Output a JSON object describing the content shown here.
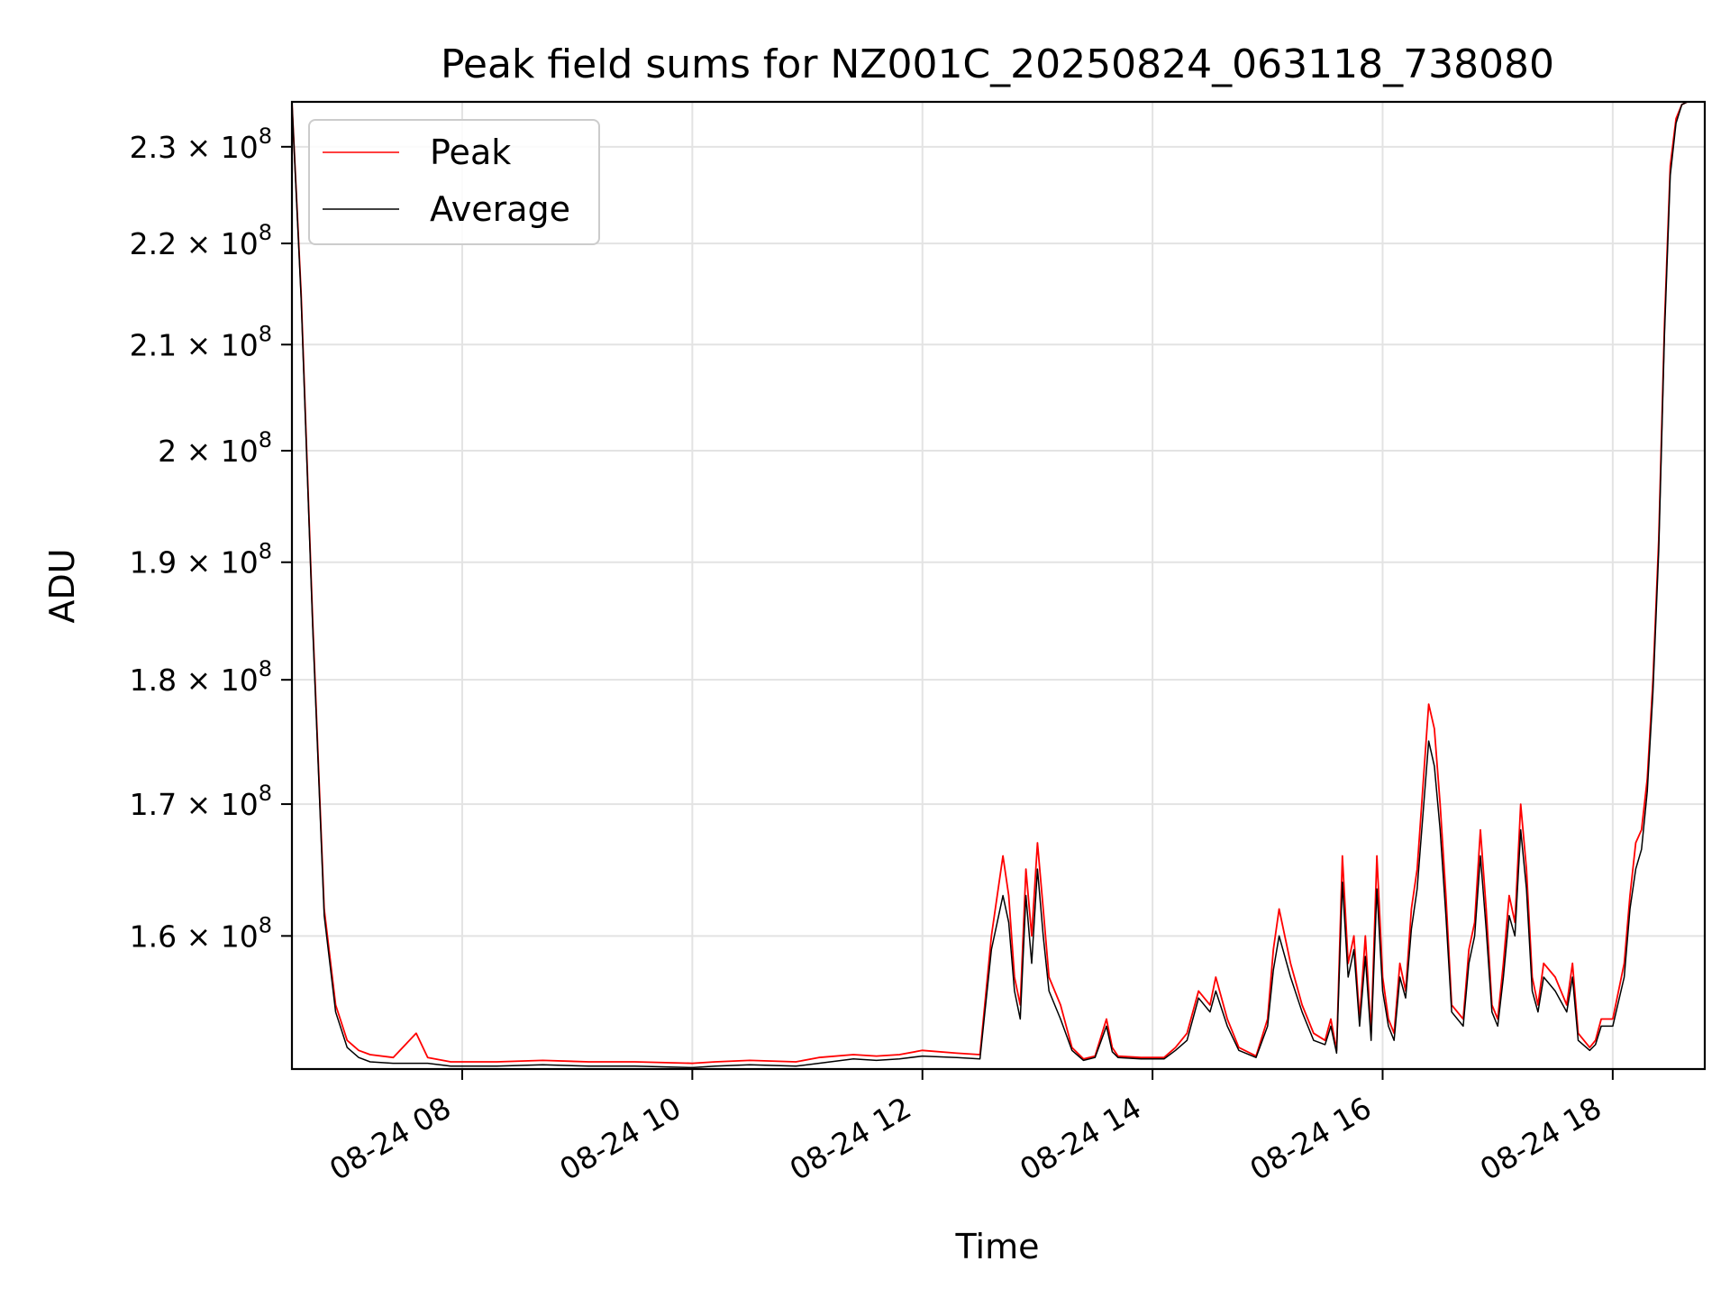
{
  "chart_data": {
    "type": "line",
    "title": "Peak field sums for NZ001C_20250824_063118_738080",
    "xlabel": "Time",
    "ylabel": "ADU",
    "x_tick_labels": [
      "08-24 08",
      "08-24 10",
      "08-24 12",
      "08-24 14",
      "08-24 16",
      "08-24 18"
    ],
    "x_tick_values": [
      8,
      10,
      12,
      14,
      16,
      18
    ],
    "xlim": [
      6.52,
      18.8
    ],
    "y_scale": "log",
    "ylim": [
      150500000,
      234800000
    ],
    "y_tick_values": [
      160000000,
      170000000,
      180000000,
      190000000,
      200000000,
      210000000,
      220000000,
      230000000
    ],
    "y_tick_mantissas": [
      "1.6",
      "1.7",
      "1.8",
      "1.9",
      "2",
      "2.1",
      "2.2",
      "2.3"
    ],
    "y_tick_times": "×",
    "y_tick_base": "10",
    "y_tick_exponent": "8",
    "grid": true,
    "legend_position": "upper-left",
    "series": [
      {
        "name": "Peak",
        "color": "#ff0000",
        "x": [
          6.52,
          6.6,
          6.7,
          6.8,
          6.9,
          7.0,
          7.1,
          7.2,
          7.4,
          7.6,
          7.7,
          7.9,
          8.3,
          8.7,
          9.1,
          9.5,
          10.0,
          10.2,
          10.5,
          10.9,
          11.1,
          11.4,
          11.6,
          11.8,
          12.0,
          12.3,
          12.5,
          12.6,
          12.7,
          12.75,
          12.8,
          12.85,
          12.9,
          12.95,
          13.0,
          13.05,
          13.1,
          13.2,
          13.3,
          13.4,
          13.5,
          13.6,
          13.65,
          13.7,
          13.9,
          14.1,
          14.2,
          14.3,
          14.4,
          14.5,
          14.55,
          14.65,
          14.75,
          14.9,
          15.0,
          15.05,
          15.1,
          15.2,
          15.3,
          15.4,
          15.5,
          15.55,
          15.6,
          15.65,
          15.7,
          15.75,
          15.8,
          15.85,
          15.9,
          15.95,
          16.0,
          16.05,
          16.1,
          16.15,
          16.2,
          16.25,
          16.3,
          16.4,
          16.45,
          16.5,
          16.55,
          16.6,
          16.7,
          16.75,
          16.8,
          16.85,
          16.9,
          16.95,
          17.0,
          17.05,
          17.1,
          17.15,
          17.2,
          17.25,
          17.3,
          17.35,
          17.4,
          17.5,
          17.6,
          17.65,
          17.7,
          17.8,
          17.85,
          17.9,
          18.0,
          18.1,
          18.15,
          18.2,
          18.25,
          18.3,
          18.35,
          18.4,
          18.45,
          18.5,
          18.55,
          18.6,
          18.65,
          18.7,
          18.8
        ],
        "y": [
          234800000,
          215000000,
          185000000,
          162000000,
          155000000,
          152500000,
          151800000,
          151500000,
          151300000,
          153000000,
          151300000,
          151000000,
          151000000,
          151100000,
          151000000,
          151000000,
          150900000,
          151000000,
          151100000,
          151000000,
          151300000,
          151500000,
          151400000,
          151500000,
          151800000,
          151600000,
          151500000,
          160000000,
          166000000,
          163000000,
          157000000,
          155000000,
          165000000,
          160000000,
          167000000,
          162000000,
          157000000,
          155000000,
          152000000,
          151200000,
          151400000,
          154000000,
          152000000,
          151400000,
          151300000,
          151300000,
          152000000,
          153000000,
          156000000,
          155000000,
          157000000,
          154000000,
          152000000,
          151400000,
          154000000,
          159000000,
          162000000,
          158000000,
          155000000,
          153000000,
          152500000,
          154000000,
          151800000,
          166000000,
          158000000,
          160000000,
          154000000,
          160000000,
          153000000,
          166000000,
          157000000,
          154000000,
          153000000,
          158000000,
          156000000,
          162000000,
          165000000,
          178000000,
          176000000,
          170000000,
          163000000,
          155000000,
          154000000,
          159000000,
          161000000,
          168000000,
          162000000,
          155000000,
          154000000,
          158000000,
          163000000,
          161000000,
          170000000,
          165000000,
          157000000,
          155000000,
          158000000,
          157000000,
          155000000,
          158000000,
          153000000,
          152000000,
          152500000,
          154000000,
          154000000,
          158000000,
          163000000,
          167000000,
          168000000,
          172000000,
          180000000,
          192000000,
          212000000,
          228000000,
          233000000,
          234500000,
          234800000,
          234800000,
          234800000
        ]
      },
      {
        "name": "Average",
        "color": "#000000",
        "x": [
          6.52,
          6.6,
          6.7,
          6.8,
          6.9,
          7.0,
          7.1,
          7.2,
          7.4,
          7.6,
          7.7,
          7.9,
          8.3,
          8.7,
          9.1,
          9.5,
          10.0,
          10.2,
          10.5,
          10.9,
          11.1,
          11.4,
          11.6,
          11.8,
          12.0,
          12.3,
          12.5,
          12.6,
          12.7,
          12.75,
          12.8,
          12.85,
          12.9,
          12.95,
          13.0,
          13.05,
          13.1,
          13.2,
          13.3,
          13.4,
          13.5,
          13.6,
          13.65,
          13.7,
          13.9,
          14.1,
          14.2,
          14.3,
          14.4,
          14.5,
          14.55,
          14.65,
          14.75,
          14.9,
          15.0,
          15.05,
          15.1,
          15.2,
          15.3,
          15.4,
          15.5,
          15.55,
          15.6,
          15.65,
          15.7,
          15.75,
          15.8,
          15.85,
          15.9,
          15.95,
          16.0,
          16.05,
          16.1,
          16.15,
          16.2,
          16.25,
          16.3,
          16.4,
          16.45,
          16.5,
          16.55,
          16.6,
          16.7,
          16.75,
          16.8,
          16.85,
          16.9,
          16.95,
          17.0,
          17.05,
          17.1,
          17.15,
          17.2,
          17.25,
          17.3,
          17.35,
          17.4,
          17.5,
          17.6,
          17.65,
          17.7,
          17.8,
          17.85,
          17.9,
          18.0,
          18.1,
          18.15,
          18.2,
          18.25,
          18.3,
          18.35,
          18.4,
          18.45,
          18.5,
          18.55,
          18.6,
          18.65,
          18.7,
          18.8
        ],
        "y": [
          234800000,
          214500000,
          184500000,
          161500000,
          154500000,
          152000000,
          151300000,
          151000000,
          150900000,
          150900000,
          150900000,
          150700000,
          150700000,
          150800000,
          150700000,
          150700000,
          150600000,
          150700000,
          150800000,
          150700000,
          150900000,
          151200000,
          151100000,
          151200000,
          151400000,
          151300000,
          151200000,
          159000000,
          163000000,
          161000000,
          156000000,
          154000000,
          163000000,
          158000000,
          165000000,
          160000000,
          156000000,
          154000000,
          151800000,
          151100000,
          151300000,
          153500000,
          151700000,
          151300000,
          151200000,
          151200000,
          151800000,
          152500000,
          155500000,
          154500000,
          156000000,
          153500000,
          151800000,
          151300000,
          153500000,
          157500000,
          160000000,
          157000000,
          154500000,
          152500000,
          152200000,
          153500000,
          151600000,
          164000000,
          157000000,
          159000000,
          153500000,
          158500000,
          152500000,
          163500000,
          156000000,
          153500000,
          152500000,
          157000000,
          155500000,
          160500000,
          163500000,
          175000000,
          173000000,
          168000000,
          161500000,
          154500000,
          153500000,
          158000000,
          160000000,
          166000000,
          160500000,
          154500000,
          153500000,
          157000000,
          161500000,
          160000000,
          168000000,
          163500000,
          156000000,
          154500000,
          157000000,
          156000000,
          154500000,
          157000000,
          152500000,
          151800000,
          152200000,
          153500000,
          153500000,
          157000000,
          162000000,
          165000000,
          166500000,
          171000000,
          179000000,
          191000000,
          211000000,
          227000000,
          232500000,
          234500000,
          234800000,
          234800000,
          234800000
        ]
      }
    ]
  }
}
